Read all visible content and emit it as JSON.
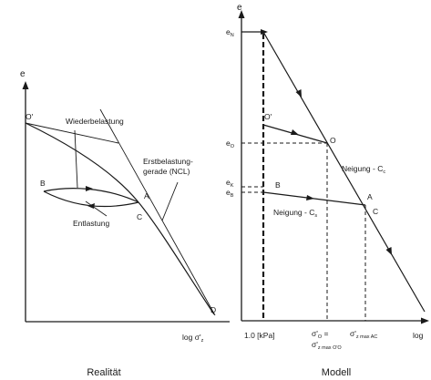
{
  "left": {
    "y_axis": "e",
    "x_axis_main": "log σ'",
    "x_axis_sub": "z",
    "point_O": "O'",
    "reloading": "Wiederbelastung",
    "virgin_line_1": "Erstbelastung-",
    "virgin_line_2": "gerade (NCL)",
    "point_B": "B",
    "point_A": "A",
    "point_C": "C",
    "unloading": "Entlastung",
    "point_D": "D",
    "caption": "Realität"
  },
  "right": {
    "y_axis": "e",
    "eN_main": "e",
    "eN_sub": "N",
    "eO_main": "e",
    "eO_sub": "O",
    "eK_main": "e",
    "eK_sub": "K",
    "eB_main": "e",
    "eB_sub": "B",
    "point_Oprime": "O'",
    "point_O": "O",
    "point_B": "B",
    "point_A": "A",
    "point_C": "C",
    "slope_cc_main": "Neigung - C",
    "slope_cc_sub": "c",
    "slope_cs_main": "Neigung - C",
    "slope_cs_sub": "s",
    "x_tick_1": "1.0 [kPa]",
    "x_tick_2_main": "σ'",
    "x_tick_2_sub": "O",
    "x_tick_2_eq": " =",
    "x_tick_2b_main": "σ'",
    "x_tick_2b_sub": "z max O'O",
    "x_tick_3_main": "σ'",
    "x_tick_3_sub": "z max AC",
    "x_axis": "log",
    "caption": "Modell"
  }
}
